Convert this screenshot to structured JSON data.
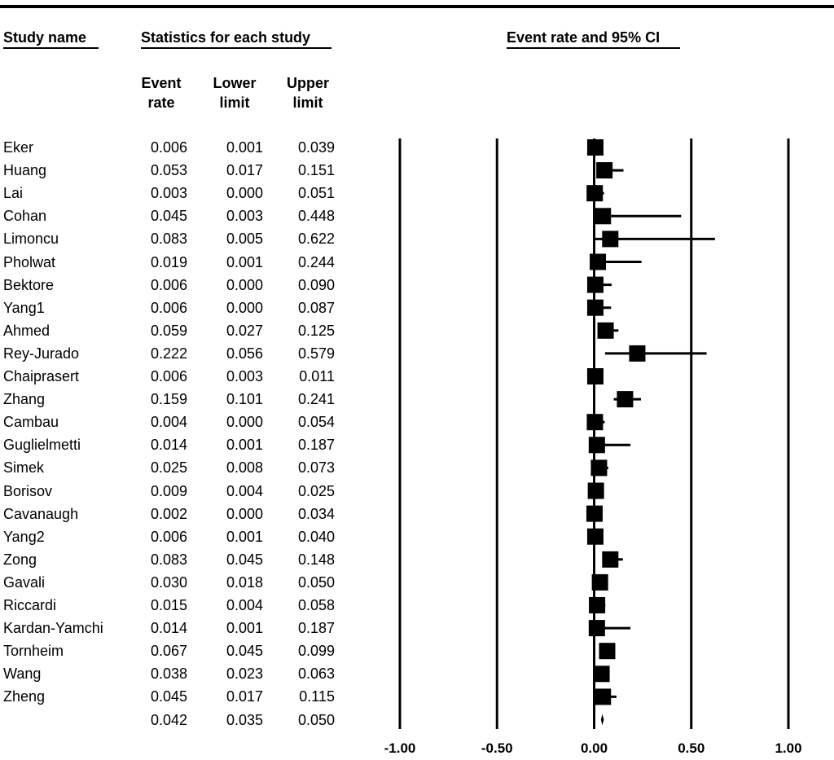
{
  "headers": {
    "study_name": "Study name",
    "statistics": "Statistics for each study",
    "plot_title": "Event rate and 95% CI",
    "event_rate": [
      "Event",
      "rate"
    ],
    "lower_limit": [
      "Lower",
      "limit"
    ],
    "upper_limit": [
      "Upper",
      "limit"
    ]
  },
  "chart_data": {
    "type": "forest",
    "title": "Event rate and 95% CI",
    "x_ticks": [
      -1.0,
      -0.5,
      0.0,
      0.5,
      1.0
    ],
    "x_tick_labels": [
      "-1.00",
      "-0.50",
      "0.00",
      "0.50",
      "1.00"
    ],
    "xlim": [
      -1.0,
      1.0
    ],
    "studies": [
      {
        "name": "Eker",
        "event_rate": 0.006,
        "lower": 0.001,
        "upper": 0.039
      },
      {
        "name": "Huang",
        "event_rate": 0.053,
        "lower": 0.017,
        "upper": 0.151
      },
      {
        "name": "Lai",
        "event_rate": 0.003,
        "lower": 0.0,
        "upper": 0.051
      },
      {
        "name": "Cohan",
        "event_rate": 0.045,
        "lower": 0.003,
        "upper": 0.448
      },
      {
        "name": "Limoncu",
        "event_rate": 0.083,
        "lower": 0.005,
        "upper": 0.622
      },
      {
        "name": "Pholwat",
        "event_rate": 0.019,
        "lower": 0.001,
        "upper": 0.244
      },
      {
        "name": "Bektore",
        "event_rate": 0.006,
        "lower": 0.0,
        "upper": 0.09
      },
      {
        "name": "Yang1",
        "event_rate": 0.006,
        "lower": 0.0,
        "upper": 0.087
      },
      {
        "name": "Ahmed",
        "event_rate": 0.059,
        "lower": 0.027,
        "upper": 0.125
      },
      {
        "name": "Rey-Jurado",
        "event_rate": 0.222,
        "lower": 0.056,
        "upper": 0.579
      },
      {
        "name": "Chaiprasert",
        "event_rate": 0.006,
        "lower": 0.003,
        "upper": 0.011
      },
      {
        "name": "Zhang",
        "event_rate": 0.159,
        "lower": 0.101,
        "upper": 0.241
      },
      {
        "name": "Cambau",
        "event_rate": 0.004,
        "lower": 0.0,
        "upper": 0.054
      },
      {
        "name": "Guglielmetti",
        "event_rate": 0.014,
        "lower": 0.001,
        "upper": 0.187
      },
      {
        "name": "Simek",
        "event_rate": 0.025,
        "lower": 0.008,
        "upper": 0.073
      },
      {
        "name": "Borisov",
        "event_rate": 0.009,
        "lower": 0.004,
        "upper": 0.025
      },
      {
        "name": "Cavanaugh",
        "event_rate": 0.002,
        "lower": 0.0,
        "upper": 0.034
      },
      {
        "name": "Yang2",
        "event_rate": 0.006,
        "lower": 0.001,
        "upper": 0.04
      },
      {
        "name": "Zong",
        "event_rate": 0.083,
        "lower": 0.045,
        "upper": 0.148
      },
      {
        "name": "Gavali",
        "event_rate": 0.03,
        "lower": 0.018,
        "upper": 0.05
      },
      {
        "name": "Riccardi",
        "event_rate": 0.015,
        "lower": 0.004,
        "upper": 0.058
      },
      {
        "name": "Kardan-Yamchi",
        "event_rate": 0.014,
        "lower": 0.001,
        "upper": 0.187
      },
      {
        "name": "Tornheim",
        "event_rate": 0.067,
        "lower": 0.045,
        "upper": 0.099
      },
      {
        "name": "Wang",
        "event_rate": 0.038,
        "lower": 0.023,
        "upper": 0.063
      },
      {
        "name": "Zheng",
        "event_rate": 0.045,
        "lower": 0.017,
        "upper": 0.115
      }
    ],
    "summary": {
      "event_rate": 0.042,
      "lower": 0.035,
      "upper": 0.05
    }
  }
}
